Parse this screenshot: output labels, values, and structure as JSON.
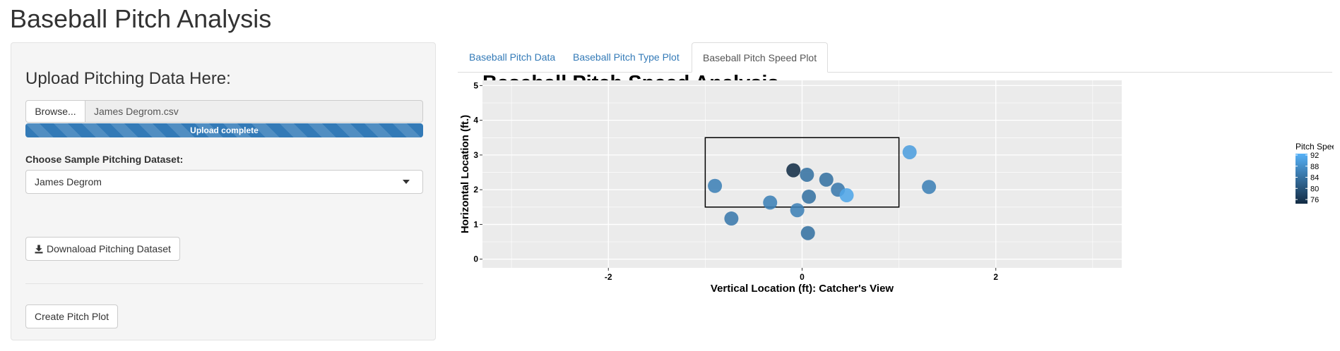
{
  "app": {
    "title": "Baseball Pitch Analysis"
  },
  "sidebar": {
    "upload_title": "Upload Pitching Data Here:",
    "browse_label": "Browse...",
    "file_name": "James Degrom.csv",
    "upload_progress_fraction": 1.0,
    "upload_status": "Upload complete",
    "select_label": "Choose Sample Pitching Dataset:",
    "select_value": "James Degrom",
    "download_label": "Downaload Pitching Dataset",
    "download_icon": "download-icon",
    "create_label": "Create Pitch Plot"
  },
  "tabs": [
    {
      "label": "Baseball Pitch Data",
      "active": false
    },
    {
      "label": "Baseball Pitch Type Plot",
      "active": false
    },
    {
      "label": "Baseball Pitch Speed Plot",
      "active": true
    }
  ],
  "colors": {
    "accent": "#337ab7",
    "panel_bg": "#ebebeb",
    "grid": "#ffffff",
    "speed_low": "#132b43",
    "speed_high": "#56b1f7"
  },
  "chart_data": {
    "type": "scatter",
    "title": "Baseball Pitch Speed Analysis",
    "xlabel": "Vertical Location (ft): Catcher's View",
    "ylabel": "Horizontal Location (ft.)",
    "xlim": [
      -3.3,
      3.3
    ],
    "ylim": [
      -0.25,
      5.15
    ],
    "x_ticks": [
      -2,
      0,
      2
    ],
    "x_tick_labels": [
      "-2",
      "0",
      "2"
    ],
    "y_ticks": [
      0,
      1,
      2,
      3,
      4,
      5
    ],
    "y_tick_labels": [
      "0",
      "1",
      "2",
      "3",
      "4",
      "5"
    ],
    "grid": true,
    "legend_position": "right",
    "legend": {
      "title": "Pitch Speed",
      "range": [
        74.5,
        92.5
      ],
      "ticks": [
        92,
        88,
        84,
        80,
        76
      ],
      "tick_labels": [
        "92",
        "88",
        "84",
        "80",
        "76"
      ]
    },
    "strike_zone": {
      "x": [
        -1.0,
        1.0
      ],
      "y": [
        1.5,
        3.5
      ]
    },
    "points": [
      {
        "x": -0.09,
        "y": 2.56,
        "speed": 75
      },
      {
        "x": 0.05,
        "y": 2.43,
        "speed": 84
      },
      {
        "x": 0.25,
        "y": 2.29,
        "speed": 84
      },
      {
        "x": 0.37,
        "y": 2.0,
        "speed": 85
      },
      {
        "x": 0.46,
        "y": 1.84,
        "speed": 91
      },
      {
        "x": 0.07,
        "y": 1.8,
        "speed": 84
      },
      {
        "x": -0.33,
        "y": 1.63,
        "speed": 86
      },
      {
        "x": -0.05,
        "y": 1.41,
        "speed": 86
      },
      {
        "x": -0.9,
        "y": 2.11,
        "speed": 86
      },
      {
        "x": -0.73,
        "y": 1.17,
        "speed": 85
      },
      {
        "x": 0.06,
        "y": 0.75,
        "speed": 84
      },
      {
        "x": 1.11,
        "y": 3.08,
        "speed": 90
      },
      {
        "x": 1.31,
        "y": 2.08,
        "speed": 86
      }
    ]
  }
}
